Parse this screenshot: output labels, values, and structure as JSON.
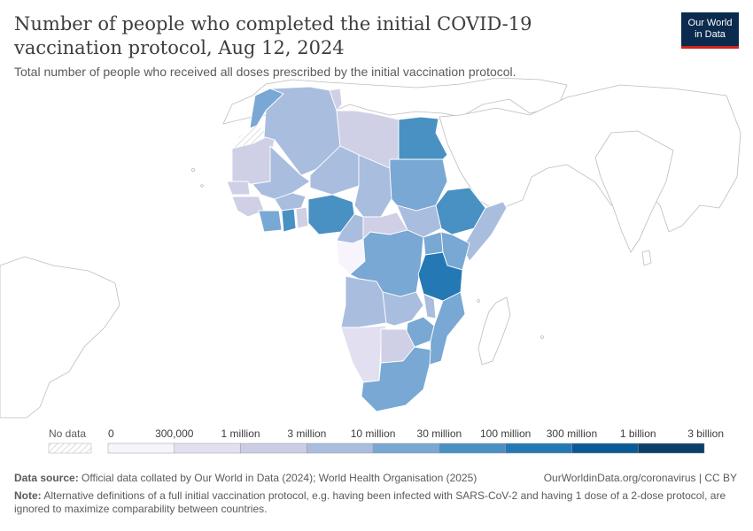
{
  "header": {
    "title": "Number of people who completed the initial COVID-19 vaccination protocol, Aug 12, 2024",
    "subtitle": "Total number of people who received all doses prescribed by the initial vaccination protocol."
  },
  "logo": {
    "line1": "Our World",
    "line2": "in Data"
  },
  "legend": {
    "no_data_label": "No data",
    "bins": [
      "0",
      "300,000",
      "1 million",
      "3 million",
      "10 million",
      "30 million",
      "100 million",
      "300 million",
      "1 billion",
      "3 billion"
    ],
    "colors": [
      "#f7f4fb",
      "#e2e0f0",
      "#ccccE4",
      "#a9bddf",
      "#78a8d3",
      "#4990c3",
      "#2479b5",
      "#0b5a98",
      "#0a3e6b"
    ]
  },
  "colors": {
    "no_data": "#ffffff",
    "c1": "#f7f4fb",
    "c2": "#e2e0f0",
    "c3": "#cfcfe6",
    "c4": "#a9bddf",
    "c5": "#78a8d3",
    "c6": "#4990c3"
  },
  "footer": {
    "source_label": "Data source:",
    "source_text": "Official data collated by Our World in Data (2024); World Health Organisation (2025)",
    "url": "OurWorldinData.org/coronavirus | CC BY",
    "note_label": "Note:",
    "note_text": "Alternative definitions of a full initial vaccination protocol, e.g. having been infected with SARS-CoV-2 and having 1 dose of a 2-dose protocol, are ignored to maximize comparability between countries."
  }
}
